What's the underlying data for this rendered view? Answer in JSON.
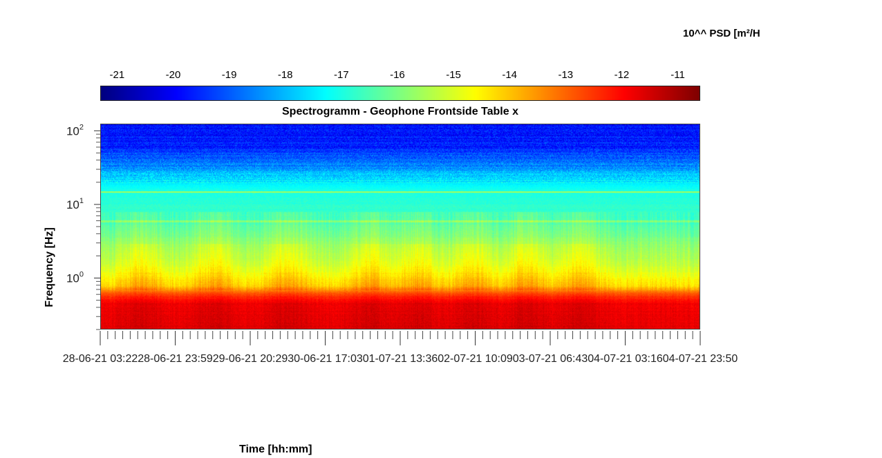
{
  "colorbar": {
    "title": "10^^ PSD [m²/H",
    "ticks": [
      -21,
      -20,
      -19,
      -18,
      -17,
      -16,
      -15,
      -14,
      -13,
      -12,
      -11
    ],
    "range": [
      -21.3,
      -10.6
    ],
    "colormap": "jet"
  },
  "chart_data": {
    "type": "heatmap",
    "title": "Spectrogramm - Geophone Frontside Table x",
    "xlabel": "Time [hh:mm]",
    "ylabel": "Frequency [Hz]",
    "yscale": "log",
    "ylim": [
      0.2,
      125
    ],
    "y_ticks": [
      {
        "base": "10",
        "exp": "0",
        "value": 1
      },
      {
        "base": "10",
        "exp": "1",
        "value": 10
      },
      {
        "base": "10",
        "exp": "2",
        "value": 100
      }
    ],
    "x_tick_labels": [
      "28-06-21 03:22",
      "28-06-21 23:59",
      "29-06-21 20:29",
      "30-06-21 17:03",
      "01-07-21 13:36",
      "02-07-21 10:09",
      "03-07-21 06:43",
      "04-07-21 03:16",
      "04-07-21 23:50"
    ],
    "minor_ticks_per_major": 10,
    "psd_profile": [
      {
        "f": 0.2,
        "psd": -11.7
      },
      {
        "f": 0.45,
        "psd": -11.8
      },
      {
        "f": 0.6,
        "psd": -12.6
      },
      {
        "f": 0.8,
        "psd": -14.3
      },
      {
        "f": 1.5,
        "psd": -15.2
      },
      {
        "f": 3,
        "psd": -15.8
      },
      {
        "f": 6,
        "psd": -16.6
      },
      {
        "f": 15,
        "psd": -17.0
      },
      {
        "f": 25,
        "psd": -17.8
      },
      {
        "f": 40,
        "psd": -18.8
      },
      {
        "f": 60,
        "psd": -19.6
      },
      {
        "f": 125,
        "psd": -19.9
      }
    ],
    "line_features": [
      {
        "f": 15,
        "psd": -15.6
      },
      {
        "f": 6,
        "psd": -15.9
      }
    ],
    "daytime_peak_columns": [
      0.07,
      0.19,
      0.31,
      0.45,
      0.53,
      0.62,
      0.71,
      0.8
    ]
  }
}
